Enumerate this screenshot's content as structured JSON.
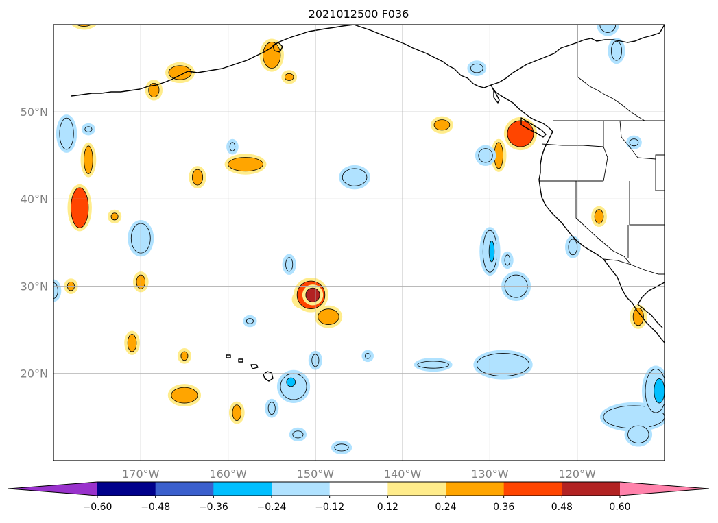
{
  "title": "2021012500 F036",
  "map": {
    "projection": "PlateCarree",
    "lon_range": [
      -180,
      -110
    ],
    "lat_range": [
      10,
      60
    ],
    "gridlines": true,
    "lon_ticks": [
      {
        "value": -170,
        "label": "170°W"
      },
      {
        "value": -160,
        "label": "160°W"
      },
      {
        "value": -150,
        "label": "150°W"
      },
      {
        "value": -140,
        "label": "140°W"
      },
      {
        "value": -130,
        "label": "130°W"
      },
      {
        "value": -120,
        "label": "120°W"
      }
    ],
    "lat_ticks": [
      {
        "value": 20,
        "label": "20°N"
      },
      {
        "value": 30,
        "label": "30°N"
      },
      {
        "value": 40,
        "label": "40°N"
      },
      {
        "value": 50,
        "label": "50°N"
      }
    ],
    "features": [
      "coastlines",
      "country borders",
      "us state borders"
    ]
  },
  "colorbar": {
    "orientation": "horizontal",
    "extend": "both",
    "levels": [
      -0.6,
      -0.48,
      -0.36,
      -0.24,
      -0.12,
      0.12,
      0.24,
      0.36,
      0.48,
      0.6
    ],
    "tick_labels": [
      "−0.60",
      "−0.48",
      "−0.36",
      "−0.24",
      "−0.12",
      "0.12",
      "0.24",
      "0.36",
      "0.48",
      "0.60"
    ],
    "colors": [
      "#9932cc",
      "#00008b",
      "#3a5fcd",
      "#00bfff",
      "#b0e2ff",
      "#ffffff",
      "#ffec8b",
      "#ffa500",
      "#ff4500",
      "#b22222",
      "#ff82ab"
    ]
  },
  "chart_data": {
    "type": "heatmap",
    "title": "2021012500 F036",
    "features": [
      {
        "lon": -150.5,
        "lat": 29.0,
        "rlon": 1.6,
        "rlat": 1.6,
        "value": 0.36
      },
      {
        "lon": -150.3,
        "lat": 29.0,
        "rlon": 0.8,
        "rlat": 0.8,
        "value": 0.48
      },
      {
        "lon": -148.5,
        "lat": 26.5,
        "rlon": 1.2,
        "rlat": 0.9,
        "value": 0.24
      },
      {
        "lon": -151.5,
        "lat": 28.5,
        "rlon": 0.8,
        "rlat": 0.7,
        "value": 0.24
      },
      {
        "lon": -177.0,
        "lat": 39.0,
        "rlon": 1.0,
        "rlat": 2.3,
        "value": 0.36
      },
      {
        "lon": -176.0,
        "lat": 44.5,
        "rlon": 0.5,
        "rlat": 1.6,
        "value": 0.24
      },
      {
        "lon": -158.0,
        "lat": 44.0,
        "rlon": 2.0,
        "rlat": 0.8,
        "value": 0.24
      },
      {
        "lon": -163.5,
        "lat": 42.5,
        "rlon": 0.6,
        "rlat": 0.9,
        "value": 0.24
      },
      {
        "lon": -165.0,
        "lat": 17.5,
        "rlon": 1.5,
        "rlat": 0.9,
        "value": 0.24
      },
      {
        "lon": -155.0,
        "lat": 56.5,
        "rlon": 1.0,
        "rlat": 1.5,
        "value": 0.24
      },
      {
        "lon": -165.5,
        "lat": 54.5,
        "rlon": 1.3,
        "rlat": 0.8,
        "value": 0.24
      },
      {
        "lon": -168.5,
        "lat": 52.5,
        "rlon": 0.6,
        "rlat": 0.8,
        "value": 0.24
      },
      {
        "lon": -126.5,
        "lat": 47.5,
        "rlon": 1.5,
        "rlat": 1.5,
        "value": 0.36
      },
      {
        "lon": -129.0,
        "lat": 45.0,
        "rlon": 0.5,
        "rlat": 1.5,
        "value": 0.24
      },
      {
        "lon": -170.0,
        "lat": 30.5,
        "rlon": 0.5,
        "rlat": 0.8,
        "value": 0.24
      },
      {
        "lon": -171.0,
        "lat": 23.5,
        "rlon": 0.5,
        "rlat": 1.0,
        "value": 0.24
      },
      {
        "lon": -159.0,
        "lat": 15.5,
        "rlon": 0.5,
        "rlat": 0.9,
        "value": 0.24
      },
      {
        "lon": -113.0,
        "lat": 26.5,
        "rlon": 0.6,
        "rlat": 1.0,
        "value": 0.24
      },
      {
        "lon": -117.5,
        "lat": 38.0,
        "rlon": 0.5,
        "rlat": 0.8,
        "value": 0.24
      },
      {
        "lon": -173.0,
        "lat": 38.0,
        "rlon": 0.4,
        "rlat": 0.4,
        "value": 0.24
      },
      {
        "lon": -178.0,
        "lat": 30.0,
        "rlon": 0.4,
        "rlat": 0.5,
        "value": 0.24
      },
      {
        "lon": -165.0,
        "lat": 22.0,
        "rlon": 0.4,
        "rlat": 0.5,
        "value": 0.24
      },
      {
        "lon": -176.5,
        "lat": 61.0,
        "rlon": 1.5,
        "rlat": 1.2,
        "value": 0.24
      },
      {
        "lon": -153.0,
        "lat": 54.0,
        "rlon": 0.5,
        "rlat": 0.4,
        "value": 0.24
      },
      {
        "lon": -135.5,
        "lat": 48.5,
        "rlon": 0.9,
        "rlat": 0.6,
        "value": 0.24
      },
      {
        "lon": -130.5,
        "lat": 45.0,
        "rlon": 0.8,
        "rlat": 0.8,
        "value": -0.24
      },
      {
        "lon": -145.5,
        "lat": 42.5,
        "rlon": 1.4,
        "rlat": 1.0,
        "value": -0.24
      },
      {
        "lon": -170.0,
        "lat": 35.5,
        "rlon": 1.1,
        "rlat": 1.7,
        "value": -0.24
      },
      {
        "lon": -178.5,
        "lat": 47.5,
        "rlon": 0.8,
        "rlat": 1.8,
        "value": -0.24
      },
      {
        "lon": -130.0,
        "lat": 34.0,
        "rlon": 0.8,
        "rlat": 2.4,
        "value": -0.24
      },
      {
        "lon": -129.8,
        "lat": 34.0,
        "rlon": 0.3,
        "rlat": 1.2,
        "value": -0.36
      },
      {
        "lon": -127.0,
        "lat": 30.0,
        "rlon": 1.3,
        "rlat": 1.3,
        "value": -0.24
      },
      {
        "lon": -128.5,
        "lat": 21.0,
        "rlon": 3.0,
        "rlat": 1.3,
        "value": -0.24
      },
      {
        "lon": -136.5,
        "lat": 21.0,
        "rlon": 1.8,
        "rlat": 0.4,
        "value": -0.24
      },
      {
        "lon": -152.5,
        "lat": 18.5,
        "rlon": 1.5,
        "rlat": 1.5,
        "value": -0.24
      },
      {
        "lon": -152.8,
        "lat": 19.0,
        "rlon": 0.5,
        "rlat": 0.5,
        "value": -0.36
      },
      {
        "lon": -113.5,
        "lat": 15.0,
        "rlon": 3.5,
        "rlat": 1.3,
        "value": -0.24
      },
      {
        "lon": -113.0,
        "lat": 13.0,
        "rlon": 1.2,
        "rlat": 1.0,
        "value": -0.24
      },
      {
        "lon": -111.0,
        "lat": 18.0,
        "rlon": 1.2,
        "rlat": 2.5,
        "value": -0.24
      },
      {
        "lon": -110.6,
        "lat": 18.0,
        "rlon": 0.6,
        "rlat": 1.4,
        "value": -0.36
      },
      {
        "lon": -120.5,
        "lat": 34.5,
        "rlon": 0.5,
        "rlat": 0.9,
        "value": -0.24
      },
      {
        "lon": -153.0,
        "lat": 32.5,
        "rlon": 0.4,
        "rlat": 0.8,
        "value": -0.24
      },
      {
        "lon": -150.0,
        "lat": 21.5,
        "rlon": 0.4,
        "rlat": 0.7,
        "value": -0.24
      },
      {
        "lon": -155.0,
        "lat": 16.0,
        "rlon": 0.4,
        "rlat": 0.7,
        "value": -0.24
      },
      {
        "lon": -115.5,
        "lat": 57.0,
        "rlon": 0.6,
        "rlat": 1.1,
        "value": -0.24
      },
      {
        "lon": -116.5,
        "lat": 60.0,
        "rlon": 0.9,
        "rlat": 0.9,
        "value": -0.24
      },
      {
        "lon": -180.0,
        "lat": 29.5,
        "rlon": 0.5,
        "rlat": 0.9,
        "value": -0.24
      },
      {
        "lon": -131.5,
        "lat": 55.0,
        "rlon": 0.7,
        "rlat": 0.5,
        "value": -0.24
      },
      {
        "lon": -147.0,
        "lat": 11.5,
        "rlon": 0.8,
        "rlat": 0.4,
        "value": -0.24
      },
      {
        "lon": -152.0,
        "lat": 13.0,
        "rlon": 0.6,
        "rlat": 0.4,
        "value": -0.24
      },
      {
        "lon": -176.0,
        "lat": 48.0,
        "rlon": 0.4,
        "rlat": 0.3,
        "value": -0.24
      },
      {
        "lon": -128.0,
        "lat": 33.0,
        "rlon": 0.3,
        "rlat": 0.6,
        "value": -0.24
      },
      {
        "lon": -159.5,
        "lat": 46.0,
        "rlon": 0.3,
        "rlat": 0.5,
        "value": -0.24
      },
      {
        "lon": -144.0,
        "lat": 22.0,
        "rlon": 0.3,
        "rlat": 0.3,
        "value": -0.24
      },
      {
        "lon": -157.5,
        "lat": 26.0,
        "rlon": 0.4,
        "rlat": 0.3,
        "value": -0.24
      },
      {
        "lon": -113.5,
        "lat": 46.5,
        "rlon": 0.5,
        "rlat": 0.4,
        "value": -0.24
      }
    ]
  }
}
